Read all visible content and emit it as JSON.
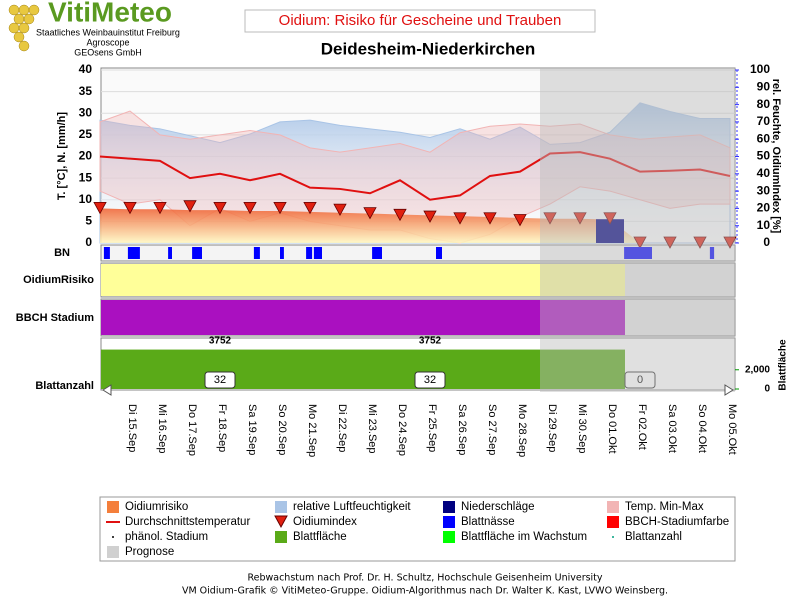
{
  "header": {
    "logo": "VitiMeteo",
    "lines": [
      "Staatliches Weinbauinstitut Freiburg",
      "Agroscope",
      "GEOsens GmbH"
    ]
  },
  "chart_data": {
    "type": "line",
    "title": "Oidium: Risiko für Gescheine und Trauben",
    "subtitle": "Deidesheim-Niederkirchen",
    "ylabel": "T. [°C], N. [mm/h]",
    "y2label": "rel. Feuchte, OidiumIndex [%]",
    "ylim": [
      0,
      40
    ],
    "yticks": [
      0,
      5,
      10,
      15,
      20,
      25,
      30,
      35,
      40
    ],
    "y2lim": [
      0,
      100
    ],
    "y2ticks": [
      0,
      10,
      20,
      30,
      40,
      50,
      60,
      70,
      80,
      90,
      100
    ],
    "categories": [
      null,
      "Di 15.Sep",
      "Mi 16.Sep",
      "Do 17.Sep",
      "Fr 18.Sep",
      "Sa 19.Sep",
      "So 20.Sep",
      "Mo 21.Sep",
      "Di 22.Sep",
      "Mi 23.Sep",
      "Do 24.Sep",
      "Fr 25.Sep",
      "Sa 26.Sep",
      "So 27.Sep",
      "Mo 28.Sep",
      "Di 29.Sep",
      "Mi 30.Sep",
      "Do 01.Okt",
      "Fr 02.Okt",
      "Sa 03.Okt",
      "So 04.Okt",
      "Mo 05.Okt"
    ],
    "series": [
      {
        "name": "relative Luftfeuchtigkeit",
        "color": "#a9c4e6",
        "axis": "y2",
        "values": [
          71,
          68,
          66,
          62,
          58,
          63,
          70,
          71,
          68,
          66,
          64,
          61,
          66,
          60,
          67,
          57,
          58,
          64,
          81,
          76,
          72,
          72
        ]
      },
      {
        "name": "Oidiumrisiko",
        "color": "#f47f3c",
        "axis": "y2",
        "values": [
          20,
          19.5,
          19.5,
          19,
          19,
          18.5,
          18.5,
          18,
          17.5,
          17,
          16.5,
          16,
          15.5,
          15,
          14.5,
          14,
          14,
          13.5,
          0,
          0,
          0,
          0
        ]
      },
      {
        "name": "Temp. Min-Max",
        "color": "#f2b4b4",
        "values": [
          28,
          30.5,
          25,
          24,
          25,
          26,
          25,
          22,
          21,
          22,
          23,
          21,
          25.5,
          27,
          27.5,
          27,
          27.5,
          25,
          24,
          24.5,
          25,
          22
        ],
        "lows": [
          12,
          9,
          10,
          4,
          8,
          5,
          7,
          5,
          4,
          3,
          3,
          1,
          0,
          2,
          6,
          9,
          13,
          12,
          10,
          8,
          9,
          9
        ]
      },
      {
        "name": "Durchschnittstemperatur",
        "color": "#e01010",
        "values": [
          20,
          19.5,
          19,
          15,
          16,
          14.5,
          16,
          12.8,
          12.5,
          11.5,
          14.5,
          10,
          11,
          15.5,
          16.5,
          20.7,
          21,
          19.5,
          16.5,
          16.7,
          17,
          15.5
        ]
      },
      {
        "name": "Niederschläge",
        "color": "#000080",
        "values": [
          0,
          0,
          0,
          0,
          0,
          0,
          0,
          0,
          0,
          0,
          0,
          0,
          0,
          0,
          0,
          0,
          0,
          5.5,
          0,
          0,
          0,
          0
        ]
      },
      {
        "name": "Oidiumindex",
        "color": "#e02010",
        "axis": "y2",
        "values": [
          20,
          20,
          20,
          21,
          20,
          20,
          20,
          20,
          19,
          17,
          16,
          15,
          14,
          14,
          13,
          14,
          14,
          14,
          0,
          0,
          0,
          0
        ]
      }
    ],
    "panels": {
      "bn_label": "BN",
      "risk_label": "OidiumRisiko",
      "bbch_label": "BBCH Stadium",
      "leaf_label": "Blattanzahl",
      "leaf_area_label": "Blattfläche"
    },
    "leaf_wetness": {
      "name": "Blattnässe",
      "color": "#0000ff",
      "periods": [
        [
          0.13,
          0.33
        ],
        [
          0.93,
          1.33
        ],
        [
          2.27,
          2.4
        ],
        [
          3.07,
          3.4
        ],
        [
          5.13,
          5.33
        ],
        [
          6,
          6.13
        ],
        [
          6.87,
          7.07
        ],
        [
          7.13,
          7.4
        ],
        [
          9.07,
          9.4
        ],
        [
          11.2,
          11.4
        ],
        [
          17.47,
          18.4
        ],
        [
          20.33,
          20.47
        ]
      ]
    },
    "bbch": {
      "name": "BBCH-Stadiumfarbe",
      "color": "#ff0000",
      "panel_color": "#aa10c0",
      "stages": [
        {
          "day": 4,
          "stage": 3752
        },
        {
          "day": 11,
          "stage": 3752
        }
      ]
    },
    "risk_color": "#ffff99",
    "leaf_count": [
      {
        "day": 4,
        "count": 32
      },
      {
        "day": 11,
        "count": 32
      },
      {
        "day": 18,
        "count": 0
      }
    ],
    "leaf_area": {
      "name": "Blattfläche",
      "color": "#5aaa18",
      "value": 4100,
      "lim": [
        0,
        5200
      ],
      "ticks": [
        0,
        {
          "value": 2000,
          "label": "2,000"
        }
      ]
    },
    "extra_legend": [
      {
        "name": "phänol. Stadium",
        "color": "#000000"
      },
      {
        "name": "Blattfläche im Wachstum",
        "color": "#00ff00"
      },
      {
        "name": "Blattanzahl",
        "color": "#00a080"
      },
      {
        "name": "Prognose",
        "color": "#d0d0d0"
      }
    ],
    "footer": [
      "Rebwachstum nach Prof. Dr. H. Schultz, Hochschule Geisenheim University",
      "VM Oidium-Grafik © VitiMeteo-Gruppe. Oidium-Algorithmus nach Dr. Walter K. Kast, LVWO Weinsberg."
    ]
  }
}
